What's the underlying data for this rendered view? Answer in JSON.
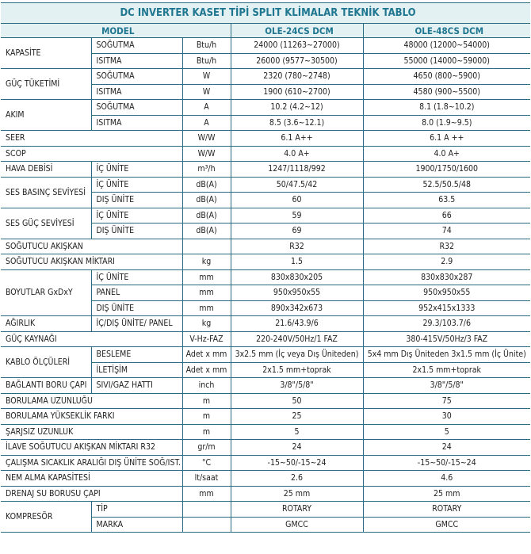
{
  "title": "DC INVERTER KASET TİPİ SPLIT KLİMALAR TEKNİK TABLO",
  "header": {
    "model": "MODEL",
    "models": [
      "OLE-24CS DCM",
      "OLE-48CS DCM"
    ]
  },
  "colors": {
    "border": "#2a6b80",
    "header_bg": "#e4f1f3",
    "header_text": "#1f7690"
  },
  "groups": [
    {
      "label": "KAPASİTE",
      "items": [
        {
          "sub": "SOĞUTMA",
          "unit": "Btu/h",
          "values": [
            "24000 (11263~27000)",
            "48000 (12000~54000)"
          ]
        },
        {
          "sub": "ISITMA",
          "unit": "Btu/h",
          "values": [
            "26000 (9577~30500)",
            "55000 (14000~59000)"
          ]
        }
      ]
    },
    {
      "label": "GÜÇ TÜKETİMİ",
      "items": [
        {
          "sub": "SOĞUTMA",
          "unit": "W",
          "values": [
            "2320 (780~2748)",
            "4650 (800~5900)"
          ]
        },
        {
          "sub": "ISITMA",
          "unit": "W",
          "values": [
            "1900 (610~2700)",
            "4580 (900~5500)"
          ]
        }
      ]
    },
    {
      "label": "AKIM",
      "items": [
        {
          "sub": "SOĞUTMA",
          "unit": "A",
          "values": [
            "10.2 (4.2~12)",
            "8.1 (1.8~10.2)"
          ]
        },
        {
          "sub": "ISITMA",
          "unit": "A",
          "values": [
            "8.5 (3.6~12.1)",
            "8.0 (1.9~9.5)"
          ]
        }
      ]
    },
    {
      "label": "SEER",
      "items": [
        {
          "unit": "W/W",
          "values": [
            "6.1 A++",
            "6.1 A ++"
          ]
        }
      ]
    },
    {
      "label": "SCOP",
      "items": [
        {
          "unit": "W/W",
          "values": [
            "4.0 A+",
            "4.0 A+"
          ]
        }
      ]
    },
    {
      "label": "HAVA DEBİSİ",
      "items": [
        {
          "sub": "İÇ ÜNİTE",
          "unit": "m³/h",
          "values": [
            "1247/1118/992",
            "1900/1750/1600"
          ]
        }
      ]
    },
    {
      "label": "SES BASINÇ SEVİYESİ",
      "items": [
        {
          "sub": "İÇ ÜNİTE",
          "unit": "dB(A)",
          "values": [
            "50/47.5/42",
            "52.5/50.5/48"
          ]
        },
        {
          "sub": "DIŞ ÜNİTE",
          "unit": "dB(A)",
          "values": [
            "60",
            "63.5"
          ]
        }
      ]
    },
    {
      "label": "SES GÜÇ SEVİYESİ",
      "items": [
        {
          "sub": "İÇ ÜNİTE",
          "unit": "dB(A)",
          "values": [
            "59",
            "66"
          ]
        },
        {
          "sub": "DIŞ ÜNİTE",
          "unit": "dB(A)",
          "values": [
            "69",
            "74"
          ]
        }
      ]
    },
    {
      "label": "SOĞUTUCU AKIŞKAN",
      "items": [
        {
          "unit": "",
          "values": [
            "R32",
            "R32"
          ]
        }
      ]
    },
    {
      "label": "SOĞUTUCU AKIŞKAN MİKTARI",
      "items": [
        {
          "unit": "kg",
          "values": [
            "1.5",
            "2.9"
          ]
        }
      ]
    },
    {
      "label": "BOYUTLAR GxDxY",
      "items": [
        {
          "sub": "İÇ ÜNİTE",
          "unit": "mm",
          "values": [
            "830x830x205",
            "830x830x287"
          ]
        },
        {
          "sub": "PANEL",
          "unit": "mm",
          "values": [
            "950x950x55",
            "950x950x55"
          ]
        },
        {
          "sub": "DIŞ ÜNİTE",
          "unit": "mm",
          "values": [
            "890x342x673",
            "952x415x1333"
          ]
        }
      ]
    },
    {
      "label": "AĞIRLIK",
      "items": [
        {
          "sub": "İÇ/DIŞ ÜNİTE/ PANEL",
          "unit": "kg",
          "values": [
            "21.6/43.9/6",
            "29.3/103.7/6"
          ]
        }
      ]
    },
    {
      "label": "GÜÇ KAYNAĞI",
      "items": [
        {
          "unit": "V-Hz-FAZ",
          "values": [
            "220-240V/50Hz/1 FAZ",
            "380-415V/50Hz/3 FAZ"
          ]
        }
      ]
    },
    {
      "label": "KABLO ÖLÇÜLERİ",
      "items": [
        {
          "sub": "BESLEME",
          "unit": "Adet x mm",
          "values": [
            "3x2.5 mm (İç veya Dış Üniteden)",
            "5x4 mm Dış Üniteden 3x1.5 mm (İç Ünite)"
          ]
        },
        {
          "sub": "İLETİŞİM",
          "unit": "Adet x mm",
          "values": [
            "2x1.5 mm+toprak",
            "2x1.5 mm+toprak"
          ]
        }
      ]
    },
    {
      "label": "BAĞLANTI BORU ÇAPI",
      "items": [
        {
          "sub": "SIVI/GAZ HATTI",
          "unit": "inch",
          "values": [
            "3/8\"/5/8\"",
            "3/8\"/5/8\""
          ]
        }
      ]
    },
    {
      "label": "BORULAMA UZUNLUĞU",
      "items": [
        {
          "unit": "m",
          "values": [
            "50",
            "75"
          ]
        }
      ]
    },
    {
      "label": "BORULAMA YÜKSEKLİK FARKI",
      "items": [
        {
          "unit": "m",
          "values": [
            "25",
            "30"
          ]
        }
      ]
    },
    {
      "label": "ŞARJSIZ UZUNLUK",
      "items": [
        {
          "unit": "m",
          "values": [
            "5",
            "5"
          ]
        }
      ]
    },
    {
      "label": "İLAVE SOĞUTUCU AKIŞKAN MİKTARI R32",
      "items": [
        {
          "unit": "gr/m",
          "values": [
            "24",
            "24"
          ]
        }
      ]
    },
    {
      "label": "ÇALIŞMA SICAKLIK ARALIĞI DIŞ ÜNİTE SOĞ/IST.",
      "items": [
        {
          "unit": "°C",
          "values": [
            "-15~50/-15~24",
            "-15~50/-15~24"
          ]
        }
      ]
    },
    {
      "label": "NEM ALMA KAPASİTESİ",
      "items": [
        {
          "unit": "lt/saat",
          "values": [
            "2.6",
            "4.6"
          ]
        }
      ]
    },
    {
      "label": "DRENAJ SU BORUSU ÇAPI",
      "items": [
        {
          "unit": "mm",
          "values": [
            "25 mm",
            "25 mm"
          ]
        }
      ]
    },
    {
      "label": "KOMPRESÖR",
      "items": [
        {
          "sub": "TİP",
          "unit": "",
          "values": [
            "ROTARY",
            "ROTARY"
          ]
        },
        {
          "sub": "MARKA",
          "unit": "",
          "values": [
            "GMCC",
            "GMCC"
          ]
        }
      ]
    }
  ]
}
